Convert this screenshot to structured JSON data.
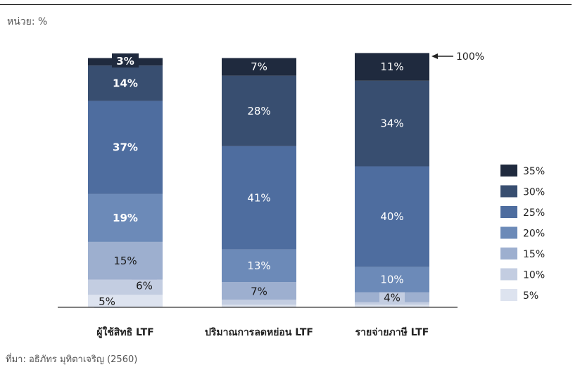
{
  "unit_label": "หน่วย: %",
  "source_note": "ที่มา: อธิภัทร มุทิตาเจริญ (2560)",
  "colors": {
    "35%": "#1f2a3e",
    "30%": "#384e70",
    "25%": "#4e6d9f",
    "20%": "#6c8ab8",
    "15%": "#9dafcf",
    "10%": "#c3cde1",
    "5%": "#dde3ef",
    "axis": "#333333",
    "annotation": "#222222"
  },
  "chart_data": {
    "type": "bar",
    "stacked": true,
    "normalized": true,
    "ylim": [
      0,
      100
    ],
    "grid": false,
    "legend_position": "right",
    "categories": [
      "ผู้ใช้สิทธิ LTF",
      "ปริมาณการลดหย่อน LTF",
      "รายจ่ายภาษี LTF"
    ],
    "series": [
      {
        "name": "5%",
        "values": [
          5,
          1,
          1
        ]
      },
      {
        "name": "10%",
        "values": [
          6,
          2,
          1
        ]
      },
      {
        "name": "15%",
        "values": [
          15,
          7,
          4
        ]
      },
      {
        "name": "20%",
        "values": [
          19,
          13,
          10
        ]
      },
      {
        "name": "25%",
        "values": [
          37,
          41,
          40
        ]
      },
      {
        "name": "30%",
        "values": [
          14,
          28,
          34
        ]
      },
      {
        "name": "35%",
        "values": [
          3,
          7,
          11
        ]
      }
    ],
    "data_labels": [
      [
        "5%",
        "6%",
        "15%",
        "19%",
        "37%",
        "14%",
        "3%"
      ],
      [
        "",
        "",
        "7%",
        "13%",
        "41%",
        "28%",
        "7%"
      ],
      [
        "",
        "",
        "4%",
        "10%",
        "40%",
        "34%",
        "11%"
      ]
    ],
    "annotation": "100%"
  }
}
